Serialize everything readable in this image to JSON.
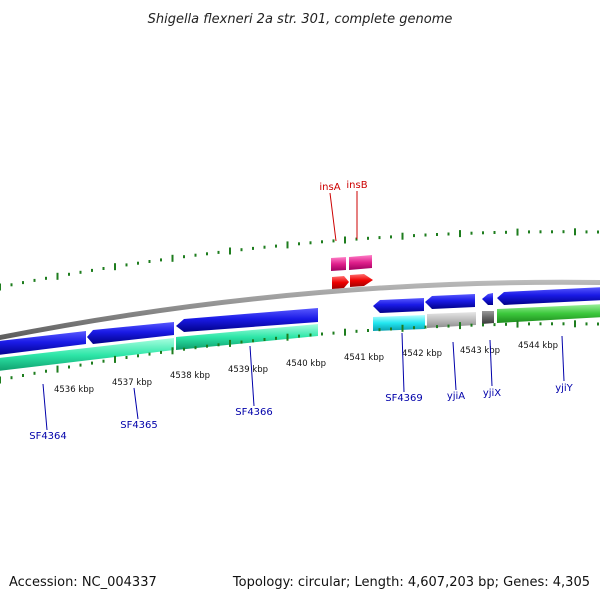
{
  "title": "Shigella flexneri 2a str. 301, complete genome",
  "footer": {
    "accession": "Accession: NC_004337",
    "summary": "Topology: circular; Length: 4,607,203 bp; Genes: 4,305"
  },
  "colors": {
    "backbone": "#8a8a8a",
    "tick": "#1e7d1e",
    "label_blue": "#0000aa",
    "label_red": "#cc0000"
  },
  "scale": {
    "tick_labels": [
      {
        "kbp": 4536,
        "label": "4536 kbp"
      },
      {
        "kbp": 4537,
        "label": "4537 kbp"
      },
      {
        "kbp": 4538,
        "label": "4538 kbp"
      },
      {
        "kbp": 4539,
        "label": "4539 kbp"
      },
      {
        "kbp": 4540,
        "label": "4540 kbp"
      },
      {
        "kbp": 4541,
        "label": "4541 kbp"
      },
      {
        "kbp": 4542,
        "label": "4542 kbp"
      },
      {
        "kbp": 4543,
        "label": "4543 kbp"
      },
      {
        "kbp": 4544,
        "label": "4544 kbp"
      }
    ]
  },
  "features": [
    {
      "name": "SF4364",
      "label": "SF4364",
      "color": "#0000aa"
    },
    {
      "name": "SF4365",
      "label": "SF4365",
      "color": "#0000aa"
    },
    {
      "name": "SF4366",
      "label": "SF4366",
      "color": "#0000aa"
    },
    {
      "name": "insA",
      "label": "insA",
      "color": "#cc0000"
    },
    {
      "name": "insB",
      "label": "insB",
      "color": "#cc0000"
    },
    {
      "name": "SF4369",
      "label": "SF4369",
      "color": "#0000aa"
    },
    {
      "name": "yjiA",
      "label": "yjiA",
      "color": "#0000aa"
    },
    {
      "name": "yjiX",
      "label": "yjiX",
      "color": "#0000aa"
    },
    {
      "name": "yjiY",
      "label": "yjiY",
      "color": "#0000aa"
    }
  ]
}
